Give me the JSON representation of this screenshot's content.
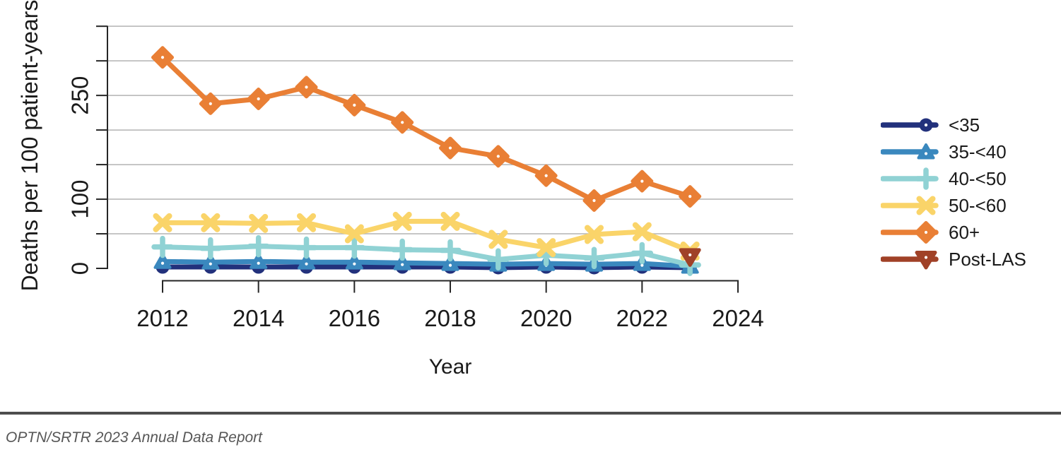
{
  "footer": {
    "text": "OPTN/SRTR 2023 Annual Data Report"
  },
  "chart_data": {
    "type": "line",
    "title": "",
    "xlabel": "Year",
    "ylabel": "Deaths per 100 patient-years",
    "x": [
      2012,
      2013,
      2014,
      2015,
      2016,
      2017,
      2018,
      2019,
      2020,
      2021,
      2022,
      2023
    ],
    "xlim": [
      2012,
      2024
    ],
    "ylim": [
      0,
      350
    ],
    "xticks": [
      2012,
      2014,
      2016,
      2018,
      2020,
      2022,
      2024
    ],
    "ytick_step": 50,
    "ytick_labeled": [
      0,
      100,
      250
    ],
    "grid": "horizontal",
    "legend_position": "right-outside",
    "colors": {
      "grid": "#b3b3b3",
      "axis": "#262626",
      "text": "#1a1a1a",
      "footer_rule": "#4d4d4d",
      "footer_text": "#575757"
    },
    "series": [
      {
        "name": "<35",
        "color": "#22317c",
        "marker": "circle",
        "values": [
          2,
          2,
          2,
          2,
          2,
          2,
          2,
          1,
          2,
          1,
          2,
          1
        ]
      },
      {
        "name": "35-<40",
        "color": "#3a88be",
        "marker": "triangle-up",
        "values": [
          10,
          9,
          10,
          9,
          9,
          8,
          7,
          6,
          7,
          6,
          7,
          3
        ]
      },
      {
        "name": "40-<50",
        "color": "#90d2d4",
        "marker": "plus",
        "values": [
          31,
          29,
          32,
          30,
          30,
          27,
          26,
          13,
          19,
          15,
          22,
          5
        ]
      },
      {
        "name": "50-<60",
        "color": "#fad469",
        "marker": "x",
        "values": [
          66,
          66,
          65,
          66,
          50,
          68,
          68,
          42,
          30,
          49,
          53,
          25
        ]
      },
      {
        "name": "60+",
        "color": "#e97f35",
        "marker": "diamond",
        "values": [
          305,
          238,
          245,
          262,
          236,
          211,
          174,
          162,
          134,
          98,
          126,
          104
        ]
      },
      {
        "name": "Post-LAS",
        "color": "#a04127",
        "marker": "triangle-down",
        "values": [
          null,
          null,
          null,
          null,
          null,
          null,
          null,
          null,
          null,
          null,
          null,
          17
        ]
      }
    ]
  }
}
